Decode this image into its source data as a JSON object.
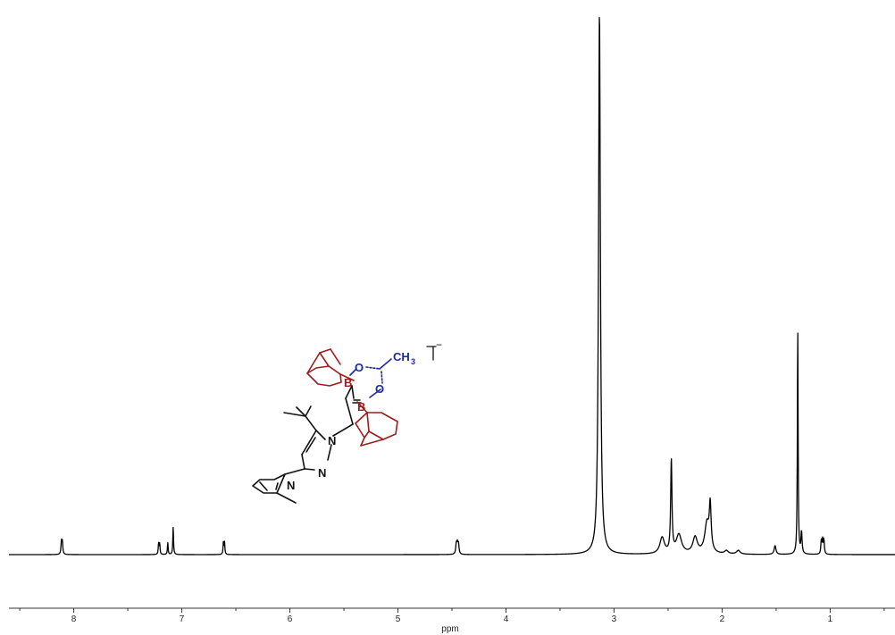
{
  "chart_data": {
    "type": "line",
    "title": "",
    "xlabel": "ppm",
    "ylabel": "",
    "x_reversed": true,
    "xlim": [
      8.6,
      0.4
    ],
    "ylim": [
      0,
      1.0
    ],
    "x_ticks": [
      8,
      7,
      6,
      5,
      4,
      3,
      2,
      1
    ],
    "x_tick_labels": [
      "8",
      "7",
      "6",
      "5",
      "4",
      "3",
      "2",
      "1"
    ],
    "grid": false,
    "legend": "none",
    "line_color": "#000000",
    "peaks": [
      {
        "ppm": 8.11,
        "height": 0.022,
        "width": 0.005,
        "mult": 2,
        "j": 0.008
      },
      {
        "ppm": 7.21,
        "height": 0.02,
        "width": 0.004,
        "mult": 2,
        "j": 0.01
      },
      {
        "ppm": 7.13,
        "height": 0.022,
        "width": 0.004
      },
      {
        "ppm": 7.08,
        "height": 0.05,
        "width": 0.004
      },
      {
        "ppm": 6.61,
        "height": 0.022,
        "width": 0.004,
        "mult": 2,
        "j": 0.01
      },
      {
        "ppm": 4.45,
        "height": 0.018,
        "width": 0.006,
        "mult": 3,
        "j": 0.01
      },
      {
        "ppm": 3.135,
        "height": 1.0,
        "width": 0.01
      },
      {
        "ppm": 2.555,
        "height": 0.03,
        "width": 0.025
      },
      {
        "ppm": 2.47,
        "height": 0.17,
        "width": 0.007
      },
      {
        "ppm": 2.4,
        "height": 0.035,
        "width": 0.03
      },
      {
        "ppm": 2.25,
        "height": 0.03,
        "width": 0.025
      },
      {
        "ppm": 2.14,
        "height": 0.055,
        "width": 0.025
      },
      {
        "ppm": 2.11,
        "height": 0.08,
        "width": 0.01
      },
      {
        "ppm": 1.96,
        "height": 0.006,
        "width": 0.02
      },
      {
        "ppm": 1.85,
        "height": 0.007,
        "width": 0.02
      },
      {
        "ppm": 1.51,
        "height": 0.016,
        "width": 0.01
      },
      {
        "ppm": 1.3,
        "height": 0.42,
        "width": 0.004
      },
      {
        "ppm": 1.265,
        "height": 0.04,
        "width": 0.006
      },
      {
        "ppm": 1.07,
        "height": 0.025,
        "width": 0.005,
        "mult": 3,
        "j": 0.012
      }
    ]
  },
  "structure": {
    "charge": "−",
    "labels": {
      "boron": "B",
      "oxygen": "O",
      "nitrogen": "N",
      "methyl": "CH",
      "methyl_sub": "3"
    },
    "colors": {
      "borane": "#9c1c1c",
      "acetate": "#1a2a9c",
      "scaffold": "#111111"
    }
  }
}
